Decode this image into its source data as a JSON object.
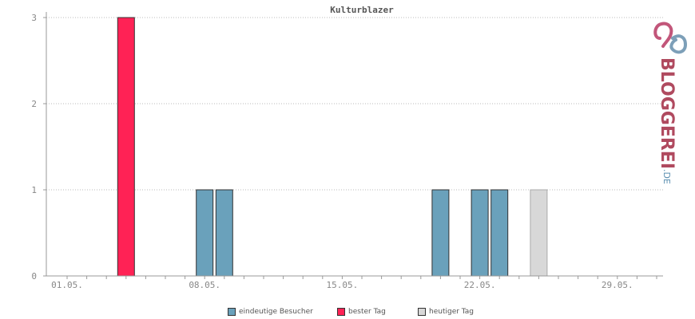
{
  "chart_data": {
    "type": "bar",
    "title": "Kulturblazer",
    "x_tick_labels": [
      "01.05.",
      "08.05.",
      "15.05.",
      "22.05.",
      "29.05."
    ],
    "y_ticks": [
      0,
      1,
      2,
      3
    ],
    "ylim": [
      0,
      3
    ],
    "grid": true,
    "legend_position": "bottom",
    "series": [
      {
        "name": "eindeutige Besucher",
        "color": "#6aa1bb",
        "points": [
          {
            "x": "08.05.",
            "y": 1
          },
          {
            "x": "09.05.",
            "y": 1
          },
          {
            "x": "20.05.",
            "y": 1
          },
          {
            "x": "22.05.",
            "y": 1
          },
          {
            "x": "23.05.",
            "y": 1
          }
        ]
      },
      {
        "name": "bester Tag",
        "color": "#ff2255",
        "points": [
          {
            "x": "04.05.",
            "y": 3
          }
        ]
      },
      {
        "name": "heutiger Tag",
        "color": "#d8d8d8",
        "points": [
          {
            "x": "25.05.",
            "y": 1
          }
        ]
      }
    ]
  },
  "brand": {
    "name": "BLOGGEREI",
    "suffix": ".DE"
  }
}
